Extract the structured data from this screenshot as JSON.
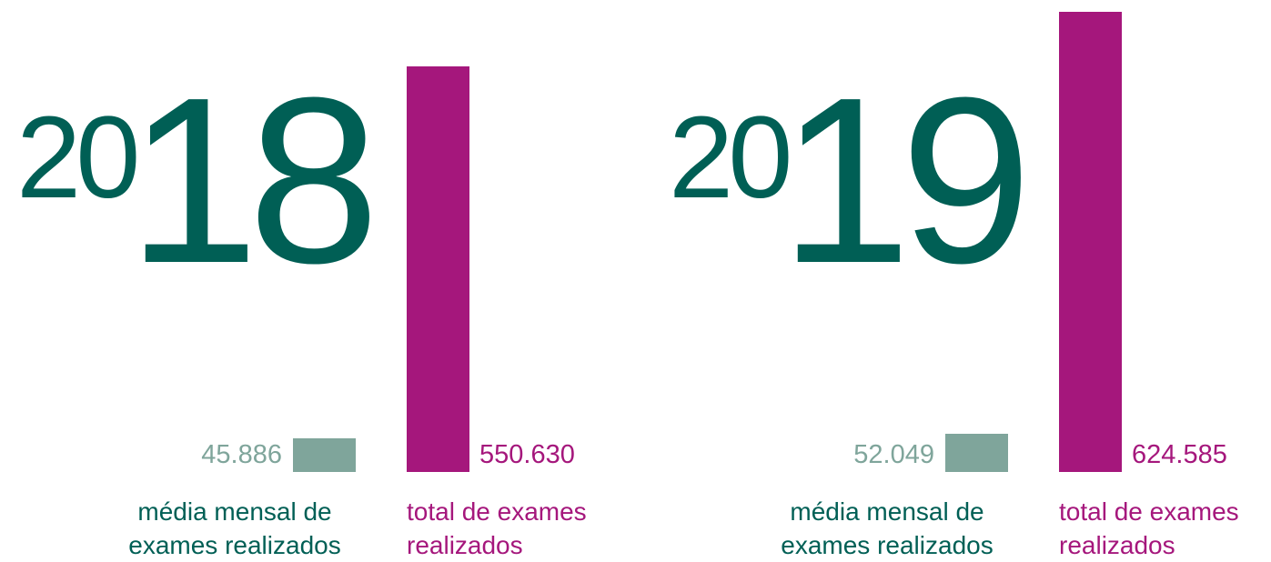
{
  "chart_data": [
    {
      "type": "bar",
      "title_small": "20",
      "title_large": "18",
      "categories": [
        "média mensal de exames realizados",
        "total de exames realizados"
      ],
      "values": [
        45886,
        550630
      ],
      "value_labels": [
        "45.886",
        "550.630"
      ],
      "colors": [
        "#7fa59b",
        "#a5177c"
      ],
      "title_color": "#005f55",
      "ylim": [
        0,
        640000
      ]
    },
    {
      "type": "bar",
      "title_small": "20",
      "title_large": "19",
      "categories": [
        "média mensal de exames realizados",
        "total de exames realizados"
      ],
      "values": [
        52049,
        624585
      ],
      "value_labels": [
        "52.049",
        "624.585"
      ],
      "colors": [
        "#7fa59b",
        "#a5177c"
      ],
      "title_color": "#005f55",
      "ylim": [
        0,
        640000
      ]
    }
  ]
}
